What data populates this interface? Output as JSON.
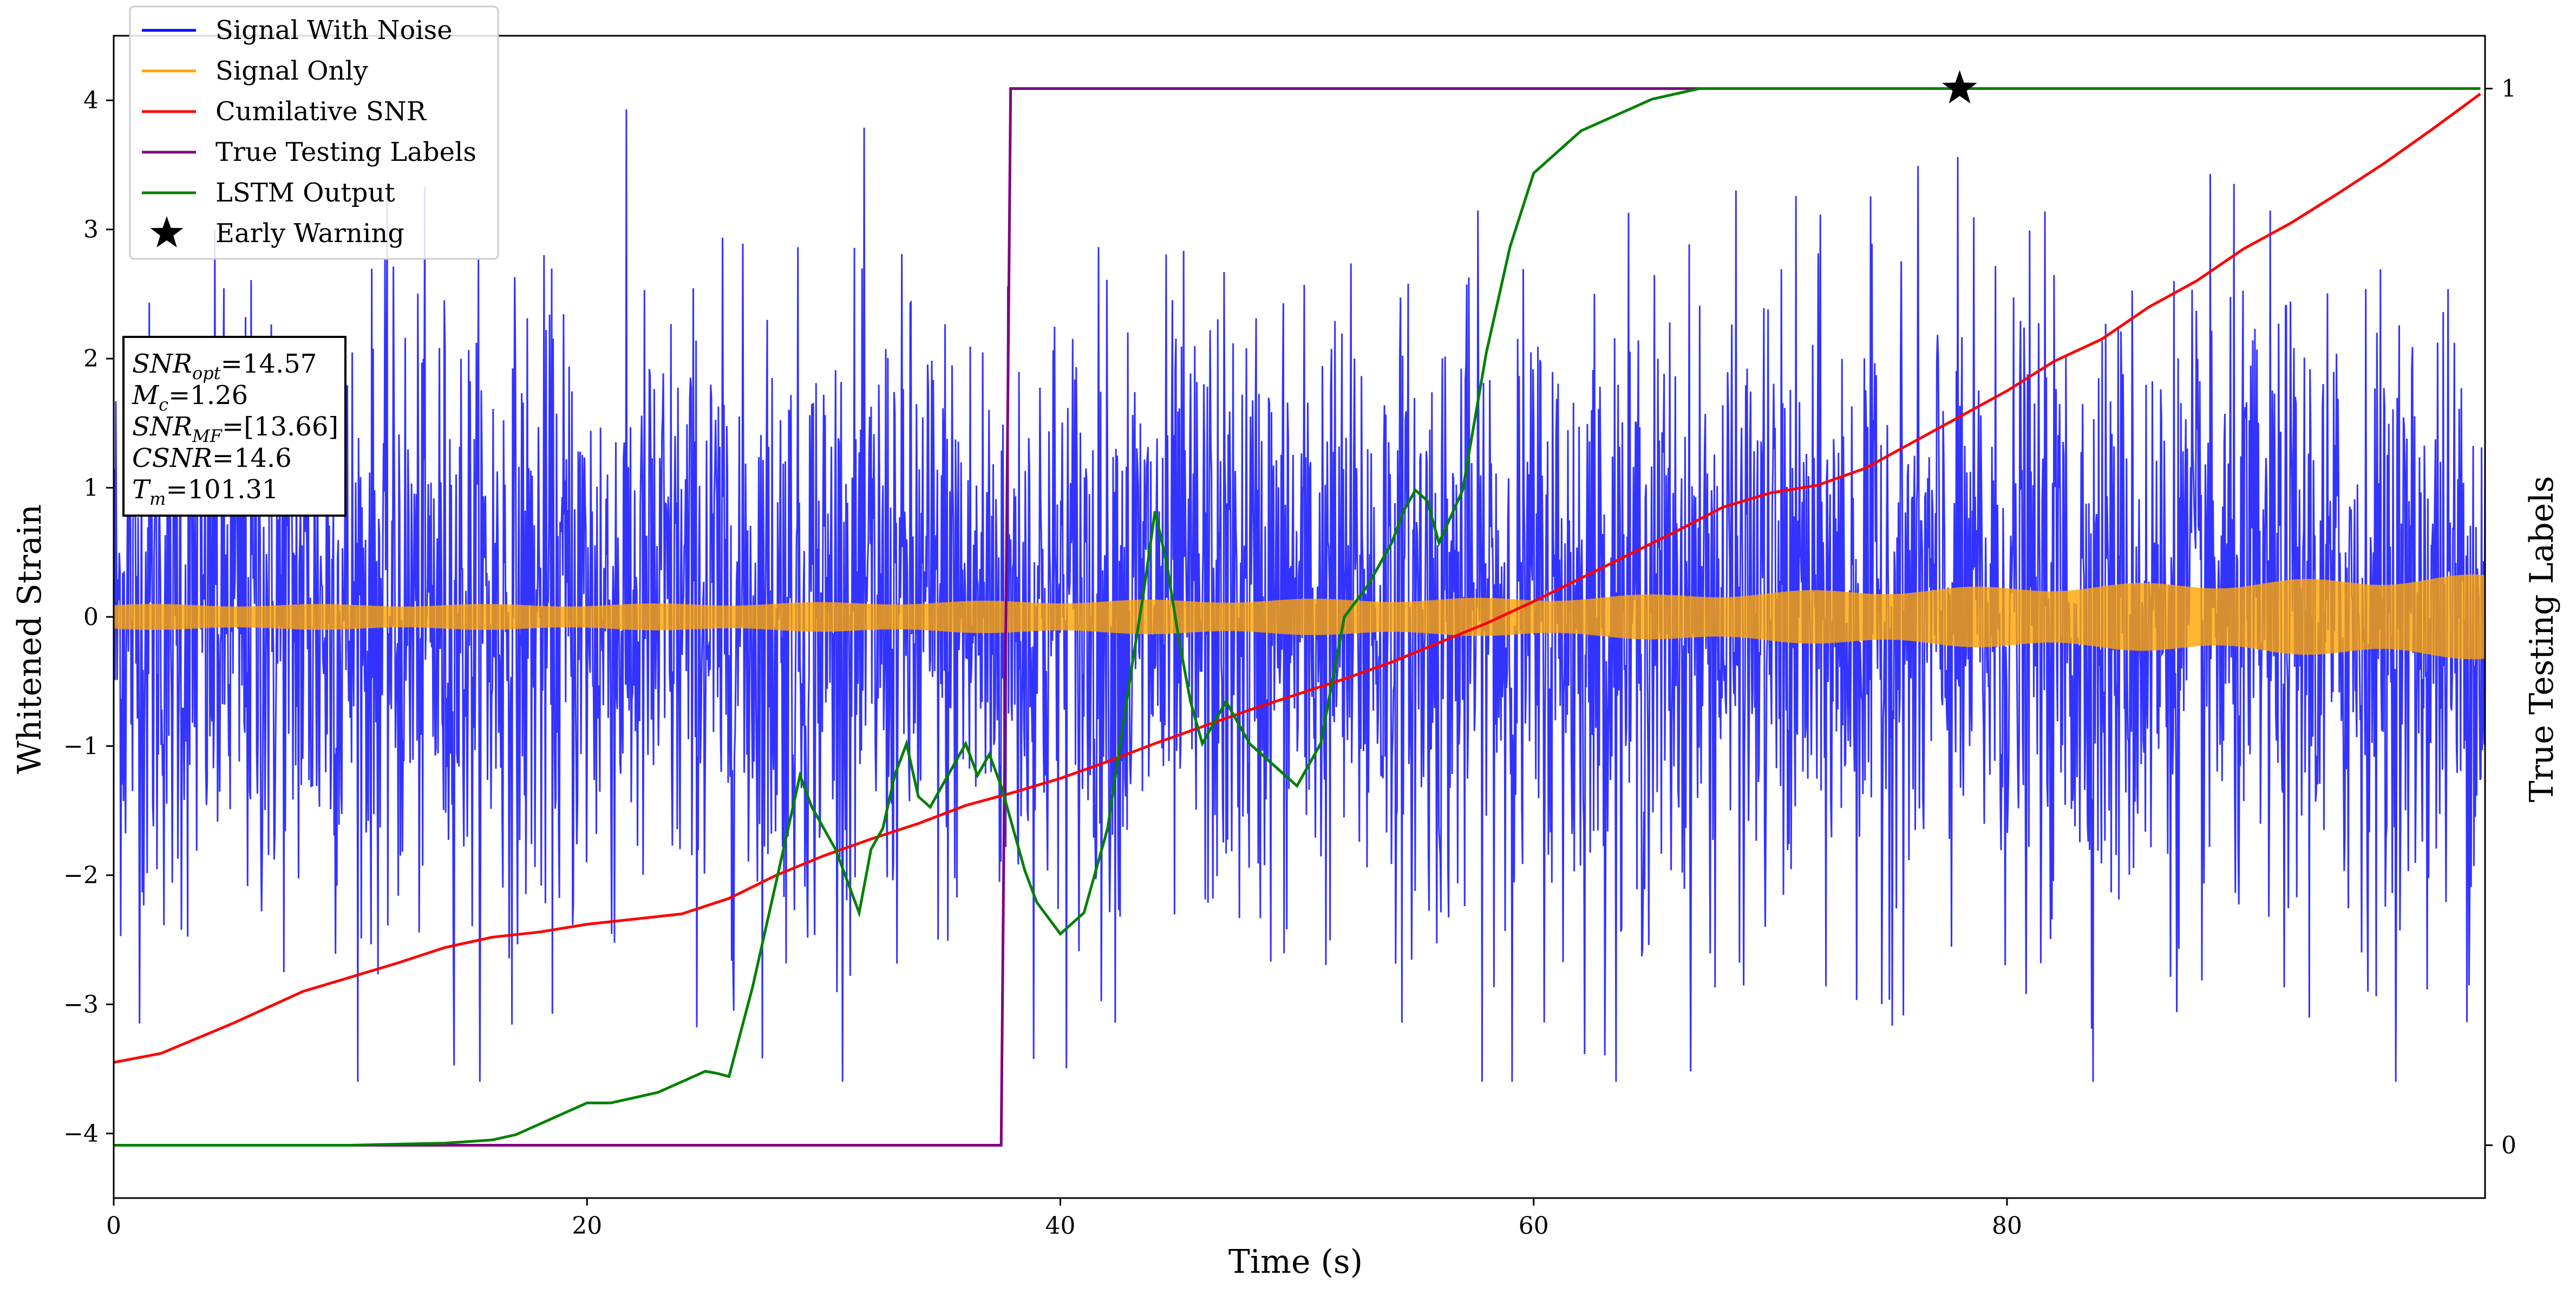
{
  "chart_data": {
    "type": "line",
    "xlabel": "Time (s)",
    "ylabel": "Whitened Strain",
    "y2label": "True Testing Labels",
    "xlim": [
      0,
      100.2
    ],
    "ylim": [
      -4.5,
      4.5
    ],
    "y2lim": [
      -0.05,
      1.05
    ],
    "xticks": [
      0,
      20,
      40,
      60,
      80
    ],
    "yticks": [
      -4,
      -3,
      -2,
      -1,
      0,
      1,
      2,
      3,
      4
    ],
    "y2ticks": [
      0,
      1
    ],
    "legend_position": "upper-left",
    "series": [
      {
        "name": "Signal With Noise",
        "color": "#0000ff",
        "axis": "left",
        "kind": "noise",
        "amplitude_approx": 1.2,
        "range": [
          -3.6,
          4.1
        ]
      },
      {
        "name": "Signal Only",
        "color": "#ffa500",
        "axis": "left",
        "kind": "chirp",
        "envelope": {
          "x": [
            0,
            20,
            40,
            60,
            70,
            80,
            90,
            100
          ],
          "y": [
            0.1,
            0.1,
            0.13,
            0.15,
            0.2,
            0.24,
            0.28,
            0.33
          ]
        }
      },
      {
        "name": "Cumilative SNR",
        "color": "#ff0000",
        "axis": "left",
        "x": [
          0,
          2,
          5,
          8,
          12,
          14,
          16,
          18,
          20,
          24,
          26,
          28,
          30,
          32,
          34,
          36,
          38,
          40,
          42,
          44,
          46,
          48,
          50,
          52,
          54,
          56,
          58,
          60,
          62,
          64,
          66,
          68,
          70,
          72,
          74,
          76,
          78,
          80,
          82,
          84,
          86,
          88,
          90,
          92,
          94,
          96,
          98,
          100
        ],
        "y": [
          -3.45,
          -3.38,
          -3.15,
          -2.9,
          -2.68,
          -2.56,
          -2.48,
          -2.44,
          -2.38,
          -2.3,
          -2.18,
          -2.0,
          -1.85,
          -1.72,
          -1.6,
          -1.46,
          -1.36,
          -1.25,
          -1.12,
          -0.98,
          -0.85,
          -0.72,
          -0.6,
          -0.48,
          -0.35,
          -0.2,
          -0.05,
          0.12,
          0.3,
          0.48,
          0.66,
          0.85,
          0.96,
          1.02,
          1.15,
          1.35,
          1.55,
          1.75,
          1.98,
          2.15,
          2.4,
          2.6,
          2.85,
          3.05,
          3.28,
          3.52,
          3.78,
          4.05
        ]
      },
      {
        "name": "True Testing Labels",
        "color": "#800080",
        "axis": "right",
        "x": [
          0,
          37.5,
          37.9,
          100
        ],
        "y": [
          0,
          0,
          1,
          1
        ]
      },
      {
        "name": "LSTM Output",
        "color": "#008000",
        "axis": "right",
        "x": [
          0,
          10,
          14,
          16,
          17,
          18,
          19,
          20,
          21,
          22,
          23,
          24,
          24.5,
          25,
          25.5,
          26,
          27,
          28,
          28.5,
          29,
          29.5,
          30,
          30.5,
          31,
          31.5,
          32,
          32.5,
          33,
          33.5,
          34,
          34.5,
          35,
          35.5,
          36,
          36.5,
          37,
          37.5,
          38,
          38.5,
          39,
          40,
          41,
          42,
          43,
          43.5,
          44,
          44.5,
          45,
          45.5,
          46,
          46.5,
          47,
          47.5,
          48,
          49,
          50,
          51,
          52,
          53,
          53.5,
          54,
          54.5,
          55,
          55.5,
          56,
          57,
          58,
          59,
          60,
          61,
          62,
          63,
          64,
          65,
          66,
          67,
          68,
          69,
          70,
          72,
          74,
          76,
          78,
          80,
          100
        ],
        "y": [
          0,
          0,
          0.002,
          0.005,
          0.01,
          0.02,
          0.03,
          0.04,
          0.04,
          0.045,
          0.05,
          0.06,
          0.065,
          0.07,
          0.068,
          0.065,
          0.15,
          0.25,
          0.3,
          0.35,
          0.32,
          0.3,
          0.28,
          0.25,
          0.22,
          0.28,
          0.3,
          0.35,
          0.38,
          0.33,
          0.32,
          0.34,
          0.36,
          0.38,
          0.35,
          0.37,
          0.34,
          0.3,
          0.26,
          0.23,
          0.2,
          0.22,
          0.3,
          0.45,
          0.52,
          0.6,
          0.55,
          0.48,
          0.42,
          0.38,
          0.4,
          0.42,
          0.4,
          0.38,
          0.36,
          0.34,
          0.38,
          0.5,
          0.53,
          0.55,
          0.57,
          0.6,
          0.62,
          0.61,
          0.57,
          0.62,
          0.75,
          0.85,
          0.92,
          0.94,
          0.96,
          0.97,
          0.98,
          0.99,
          0.995,
          1.0,
          1.0,
          1.0,
          1.0,
          1.0,
          1.0,
          1.0,
          1.0,
          1.0,
          1.0
        ]
      },
      {
        "name": "Early Warning",
        "color": "#000000",
        "axis": "right",
        "marker": "star",
        "x": [
          78
        ],
        "y": [
          1
        ]
      }
    ],
    "annotation": {
      "lines": [
        {
          "main": "SNR",
          "sub": "opt",
          "value": "=14.57"
        },
        {
          "main": "M",
          "sub": "c",
          "value": "=1.26"
        },
        {
          "main": "SNR",
          "sub": "MF",
          "value": "=[13.66]"
        },
        {
          "main": "CSNR",
          "sub": "",
          "value": "=14.6"
        },
        {
          "main": "T",
          "sub": "m",
          "value": "=101.31"
        }
      ]
    }
  }
}
